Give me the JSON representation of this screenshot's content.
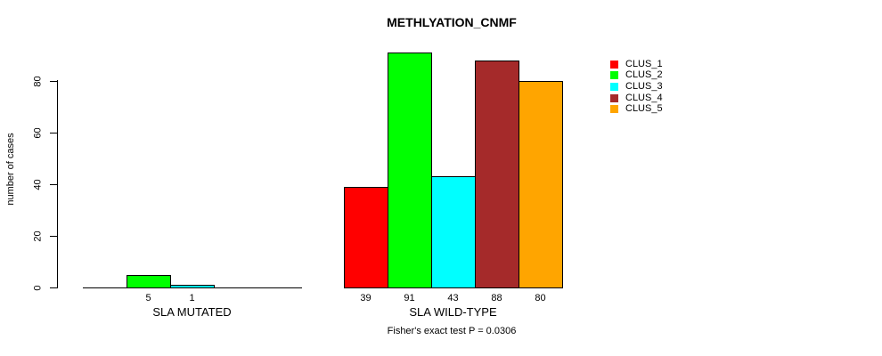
{
  "chart_data": {
    "type": "bar",
    "title": "METHLYATION_CNMF",
    "ylabel": "number of cases",
    "yticks": [
      0,
      20,
      40,
      60,
      80
    ],
    "ylim": [
      0,
      91
    ],
    "grid": false,
    "legend_position": "right",
    "categories": [
      "SLA MUTATED",
      "SLA WILD-TYPE"
    ],
    "series": [
      {
        "name": "CLUS_1",
        "color": "#FF0000",
        "values": [
          0,
          39
        ]
      },
      {
        "name": "CLUS_2",
        "color": "#00FF00",
        "values": [
          5,
          91
        ]
      },
      {
        "name": "CLUS_3",
        "color": "#00FFFF",
        "values": [
          1,
          43
        ]
      },
      {
        "name": "CLUS_4",
        "color": "#A52A2A",
        "values": [
          0,
          88
        ]
      },
      {
        "name": "CLUS_5",
        "color": "#FFA500",
        "values": [
          0,
          80
        ]
      }
    ],
    "bar_value_labels": [
      [
        "",
        "5",
        "1",
        "",
        ""
      ],
      [
        "39",
        "91",
        "43",
        "88",
        "80"
      ]
    ],
    "annotation": "Fisher's exact test P = 0.0306",
    "axis_color": "#000000",
    "background": "#FFFFFF"
  }
}
